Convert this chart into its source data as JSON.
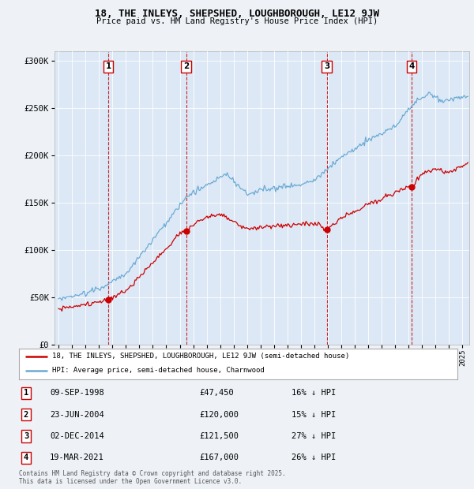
{
  "title_line1": "18, THE INLEYS, SHEPSHED, LOUGHBOROUGH, LE12 9JW",
  "title_line2": "Price paid vs. HM Land Registry's House Price Index (HPI)",
  "background_color": "#eef2f7",
  "plot_bg_color": "#dce8f5",
  "ylim": [
    0,
    310000
  ],
  "yticks": [
    0,
    50000,
    100000,
    150000,
    200000,
    250000,
    300000
  ],
  "ytick_labels": [
    "£0",
    "£50K",
    "£100K",
    "£150K",
    "£200K",
    "£250K",
    "£300K"
  ],
  "sale_dates_num": [
    1998.69,
    2004.48,
    2014.92,
    2021.22
  ],
  "sale_prices": [
    47450,
    120000,
    121500,
    167000
  ],
  "sale_labels": [
    "1",
    "2",
    "3",
    "4"
  ],
  "sale_label_info": [
    {
      "num": "1",
      "date": "09-SEP-1998",
      "price": "£47,450",
      "hpi": "16% ↓ HPI"
    },
    {
      "num": "2",
      "date": "23-JUN-2004",
      "price": "£120,000",
      "hpi": "15% ↓ HPI"
    },
    {
      "num": "3",
      "date": "02-DEC-2014",
      "price": "£121,500",
      "hpi": "27% ↓ HPI"
    },
    {
      "num": "4",
      "date": "19-MAR-2021",
      "price": "£167,000",
      "hpi": "26% ↓ HPI"
    }
  ],
  "hpi_color": "#6aaad4",
  "sale_color": "#cc0000",
  "dashed_line_color": "#cc0000",
  "legend_label_sale": "18, THE INLEYS, SHEPSHED, LOUGHBOROUGH, LE12 9JW (semi-detached house)",
  "legend_label_hpi": "HPI: Average price, semi-detached house, Charnwood",
  "footer_text": "Contains HM Land Registry data © Crown copyright and database right 2025.\nThis data is licensed under the Open Government Licence v3.0.",
  "xmin": 1994.7,
  "xmax": 2025.5
}
